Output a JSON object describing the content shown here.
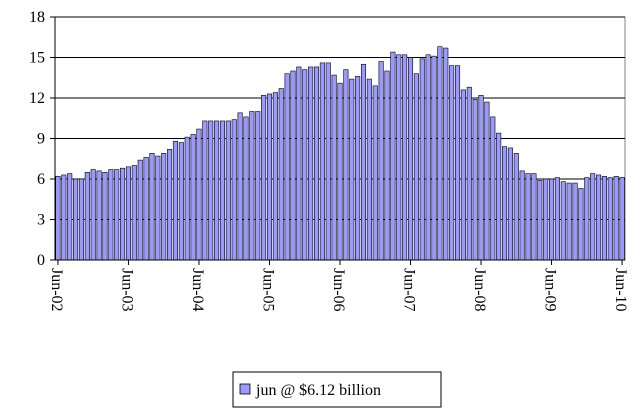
{
  "chart_data": {
    "type": "bar",
    "categories": [
      "Jun-02",
      null,
      null,
      null,
      null,
      null,
      null,
      null,
      null,
      null,
      null,
      null,
      "Jun-03",
      null,
      null,
      null,
      null,
      null,
      null,
      null,
      null,
      null,
      null,
      null,
      "Jun-04",
      null,
      null,
      null,
      null,
      null,
      null,
      null,
      null,
      null,
      null,
      null,
      "Jun-05",
      null,
      null,
      null,
      null,
      null,
      null,
      null,
      null,
      null,
      null,
      null,
      "Jun-06",
      null,
      null,
      null,
      null,
      null,
      null,
      null,
      null,
      null,
      null,
      null,
      "Jun-07",
      null,
      null,
      null,
      null,
      null,
      null,
      null,
      null,
      null,
      null,
      null,
      "Jun-08",
      null,
      null,
      null,
      null,
      null,
      null,
      null,
      null,
      null,
      null,
      null,
      "Jun-09",
      null,
      null,
      null,
      null,
      null,
      null,
      null,
      null,
      null,
      null,
      null,
      "Jun-10"
    ],
    "series": [
      {
        "name": "jun @ $6.12 billion",
        "color": "#9999ff",
        "values": [
          6.2,
          6.3,
          6.4,
          6.0,
          6.0,
          6.5,
          6.7,
          6.6,
          6.5,
          6.7,
          6.7,
          6.8,
          6.9,
          7.0,
          7.4,
          7.6,
          7.9,
          7.7,
          7.9,
          8.2,
          8.8,
          8.7,
          9.1,
          9.3,
          9.7,
          10.3,
          10.3,
          10.3,
          10.3,
          10.3,
          10.4,
          10.9,
          10.6,
          11.0,
          11.0,
          12.2,
          12.3,
          12.4,
          12.7,
          13.8,
          14.0,
          14.3,
          14.1,
          14.3,
          14.3,
          14.6,
          14.6,
          13.7,
          13.1,
          14.1,
          13.4,
          13.6,
          14.5,
          13.4,
          12.9,
          14.7,
          14.0,
          15.4,
          15.2,
          15.2,
          15.0,
          13.8,
          14.9,
          15.2,
          15.1,
          15.8,
          15.7,
          14.4,
          14.4,
          12.6,
          12.8,
          11.9,
          12.2,
          11.7,
          10.6,
          9.4,
          8.4,
          8.3,
          7.9,
          6.6,
          6.4,
          6.4,
          5.9,
          6.0,
          6.0,
          6.1,
          5.8,
          5.7,
          5.7,
          5.3,
          6.1,
          6.4,
          6.3,
          6.2,
          6.1,
          6.2,
          6.12
        ]
      }
    ],
    "ylim": [
      0,
      18
    ],
    "yticks": [
      0,
      3,
      6,
      9,
      12,
      15,
      18
    ],
    "grid": true
  }
}
